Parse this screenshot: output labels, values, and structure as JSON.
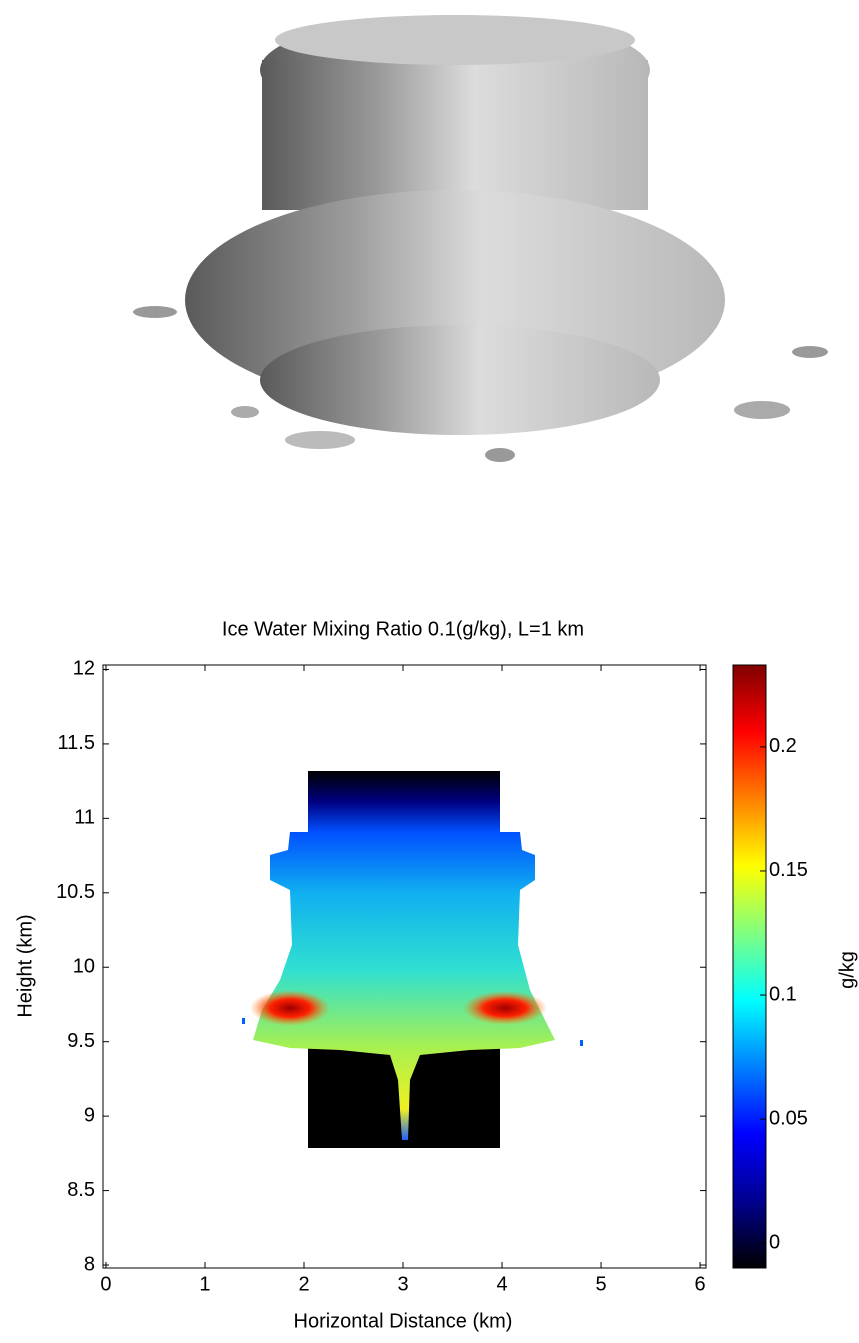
{
  "chart_data": {
    "type": "heatmap",
    "title": "Ice Water Mixing Ratio 0.1(g/kg), L=1 km",
    "xlabel": "Horizontal Distance (km)",
    "ylabel": "Height (km)",
    "colorbar_label": "g/kg",
    "xlim": [
      -0.03,
      6.06
    ],
    "xticks": [
      0,
      1,
      2,
      3,
      4,
      5,
      6
    ],
    "ylim": [
      7.98,
      12.03
    ],
    "yticks": [
      8,
      8.5,
      9,
      9.5,
      10,
      10.5,
      11,
      11.5,
      12
    ],
    "clim": [
      -0.01,
      0.233
    ],
    "cticks": [
      0,
      0.05,
      0.1,
      0.15,
      0.2
    ],
    "colormap": [
      "#000000",
      "#00008f",
      "#0000ff",
      "#0080ff",
      "#00ffff",
      "#80ff80",
      "#ffff00",
      "#ff8000",
      "#ff0000",
      "#800000"
    ]
  }
}
